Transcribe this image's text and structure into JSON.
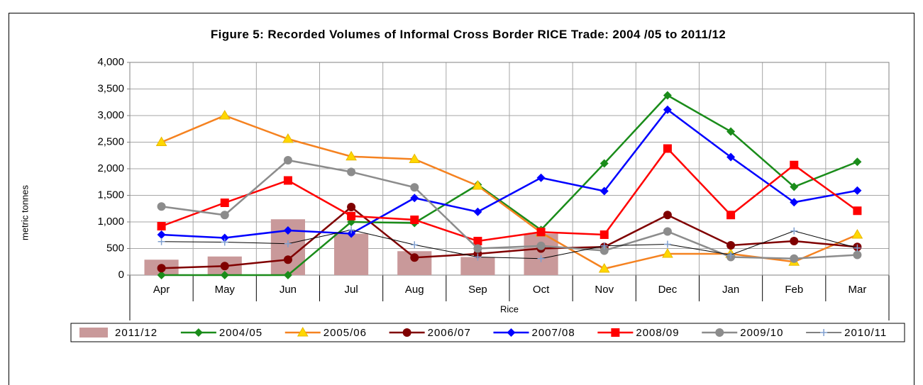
{
  "chart_data": {
    "type": "line",
    "title": "Figure 5: Recorded Volumes of Informal Cross Border RICE Trade:  2004 /05 to 2011/12",
    "y_label": "metric tonnes",
    "x_group_label": "Rice",
    "categories": [
      "Apr",
      "May",
      "Jun",
      "Jul",
      "Aug",
      "Sep",
      "Oct",
      "Nov",
      "Dec",
      "Jan",
      "Feb",
      "Mar"
    ],
    "ylim": [
      0,
      4000
    ],
    "yticks": [
      0,
      500,
      {
        "value": 1000,
        "label": "1,000"
      },
      {
        "value": 1500,
        "label": "1,500"
      },
      {
        "value": 2000,
        "label": "2,000"
      },
      {
        "value": 2500,
        "label": "2,500"
      },
      {
        "value": 3000,
        "label": "3,000"
      },
      {
        "value": 3500,
        "label": "3,500"
      },
      {
        "value": 4000,
        "label": "4,000"
      }
    ],
    "grid": true,
    "legend": "bottom",
    "series": [
      {
        "name": "2011/12",
        "type": "bar",
        "color": "#c9999a",
        "values": [
          290,
          350,
          1050,
          780,
          450,
          340,
          780,
          null,
          null,
          null,
          null,
          null
        ]
      },
      {
        "name": "2004/05",
        "type": "line",
        "marker": "diamond",
        "color": "#1a8c1a",
        "values": [
          0,
          0,
          0,
          1000,
          980,
          1700,
          850,
          2100,
          3380,
          2700,
          1660,
          2130
        ]
      },
      {
        "name": "2005/06",
        "type": "line",
        "marker": "triangle",
        "color": "#f58220",
        "values": [
          2500,
          3000,
          2560,
          2230,
          2180,
          1680,
          800,
          120,
          400,
          400,
          250,
          760
        ]
      },
      {
        "name": "2006/07",
        "type": "line",
        "marker": "circle",
        "color": "#800000",
        "values": [
          130,
          170,
          290,
          1280,
          330,
          400,
          500,
          530,
          1130,
          560,
          640,
          530
        ]
      },
      {
        "name": "2007/08",
        "type": "line",
        "marker": "diamond",
        "color": "#0000ff",
        "values": [
          760,
          700,
          840,
          780,
          1450,
          1190,
          1830,
          1580,
          3110,
          2220,
          1370,
          1590
        ]
      },
      {
        "name": "2008/09",
        "type": "line",
        "marker": "square",
        "color": "#ff0000",
        "values": [
          920,
          1360,
          1780,
          1110,
          1040,
          640,
          810,
          760,
          2380,
          1130,
          2070,
          1210
        ]
      },
      {
        "name": "2009/10",
        "type": "line",
        "marker": "circle",
        "color": "#8c8c8c",
        "values": [
          1290,
          1130,
          2160,
          1940,
          1650,
          500,
          550,
          460,
          820,
          340,
          310,
          380
        ]
      },
      {
        "name": "2010/11",
        "type": "line",
        "marker": "plus",
        "color": "#000000",
        "marker_color": "#7f9fcf",
        "values": [
          630,
          620,
          590,
          850,
          570,
          340,
          310,
          550,
          580,
          380,
          830,
          510
        ]
      }
    ]
  }
}
